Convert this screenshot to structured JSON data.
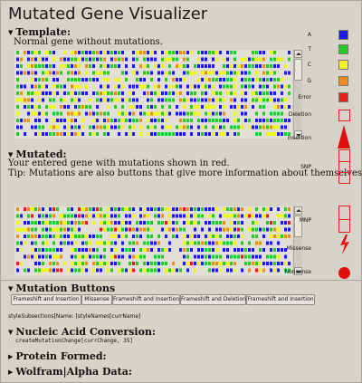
{
  "app": {
    "title": "Mutated Gene Visualizer"
  },
  "template_section": {
    "heading": "Template:",
    "description": "Normal gene without mutations."
  },
  "mutated_section": {
    "heading": "Mutated:",
    "description": "Your entered gene with mutations shown in red.",
    "tip": "Tip: Mutations are also buttons that give more information about themselves."
  },
  "legend": {
    "items": [
      {
        "label": "A",
        "color": "#1a1aee",
        "shape": "square"
      },
      {
        "label": "T",
        "color": "#22cc22",
        "shape": "square"
      },
      {
        "label": "C",
        "color": "#f2f222",
        "shape": "square"
      },
      {
        "label": "G",
        "color": "#f08c1e",
        "shape": "square"
      },
      {
        "label": "Error",
        "color": "#ee1a1a",
        "shape": "square"
      },
      {
        "label": "Deletion",
        "color": "#dd2222",
        "shape": "outline-square"
      },
      {
        "label": "Insertion",
        "color": "#e01010",
        "shape": "triangle"
      },
      {
        "label": "SNP",
        "color": "#dd2222",
        "shape": "outline-tall"
      },
      {
        "label": "MNP",
        "color": "#dd2222",
        "shape": "outline-split"
      },
      {
        "label": "Missense",
        "color": "#e01010",
        "shape": "bolt"
      },
      {
        "label": "Nonsense",
        "color": "#e01010",
        "shape": "circle"
      }
    ]
  },
  "mutation_buttons": {
    "heading": "Mutation Buttons",
    "buttons": [
      "Frameshift and Insertion",
      "Missense",
      "Frameshift and Insertion",
      "Frameshift and Deletion",
      "Frameshift and Insertion"
    ],
    "status_text": "styleSubsections[Name: [styleNames[currName]"
  },
  "nucleic_acid": {
    "heading": "Nucleic Acid Conversion:",
    "code": "createMutationChange[currChange, 35]"
  },
  "protein": {
    "heading": "Protein Formed:"
  },
  "wolfram": {
    "heading": "Wolfram|Alpha Data:"
  }
}
